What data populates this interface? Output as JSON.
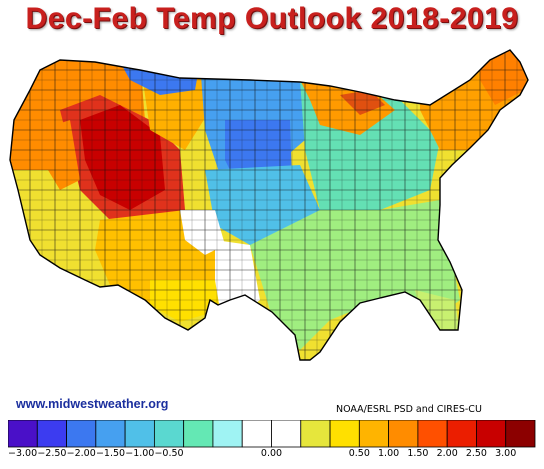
{
  "title": "Dec-Feb Temp Outlook 2018-2019",
  "website": "www.midwestweather.org",
  "credit": "NOAA/ESRL PSD and CIRES-CU",
  "legend": {
    "colors": [
      "#4a10c8",
      "#3c3cf0",
      "#3c78f0",
      "#46a0f0",
      "#50c0e8",
      "#5ad8d0",
      "#64e8b4",
      "#9ff3f3",
      "#ffffff",
      "#ffffff",
      "#e6e63c",
      "#ffe000",
      "#ffb400",
      "#ff8c00",
      "#ff5000",
      "#eb1e00",
      "#c80000",
      "#8c0000"
    ],
    "labels": [
      "-3.00",
      "-2.50",
      "-2.00",
      "-1.50",
      "-1.00",
      "-0.50",
      "0.00",
      "0.50",
      "1.00",
      "1.50",
      "2.00",
      "2.50",
      "3.00"
    ]
  },
  "map_regions": [
    {
      "name": "pacific-northwest",
      "color": "#ff8c00"
    },
    {
      "name": "great-basin",
      "color": "#d71a10"
    },
    {
      "name": "california-coast",
      "color": "#f0e030"
    },
    {
      "name": "southwest",
      "color": "#ffc000"
    },
    {
      "name": "northern-plains",
      "color": "#3c96f0"
    },
    {
      "name": "central-plains",
      "color": "#50c0e8"
    },
    {
      "name": "midwest",
      "color": "#64e0b4"
    },
    {
      "name": "southeast",
      "color": "#a0ee80"
    },
    {
      "name": "great-lakes",
      "color": "#ff9000"
    },
    {
      "name": "northeast",
      "color": "#ffa000"
    },
    {
      "name": "texas-west",
      "color": "#ffffff"
    },
    {
      "name": "texas-east",
      "color": "#a0ee80"
    }
  ]
}
